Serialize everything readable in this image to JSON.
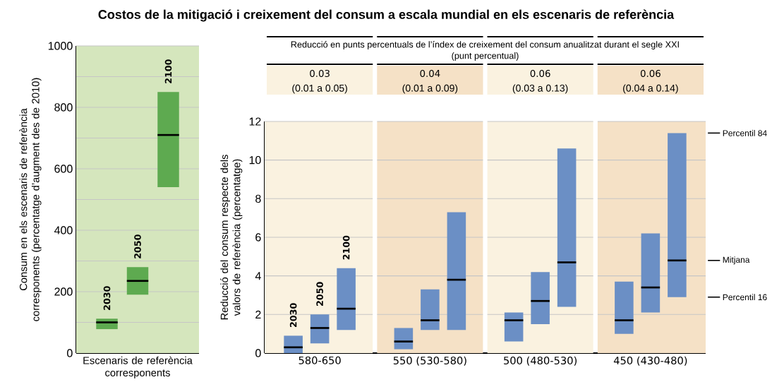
{
  "chart_data": [
    {
      "type": "box",
      "title": "Costos de la mitigació i creixement del consum a escala mundial en els escenaris de referència",
      "categories": [
        "2030",
        "2050",
        "2100"
      ],
      "color": "#5eaa50",
      "boxes": [
        {
          "low": 78,
          "q1": 78,
          "median": 100,
          "q3": 112,
          "high": 112
        },
        {
          "low": 190,
          "q1": 190,
          "median": 235,
          "q3": 280,
          "high": 280
        },
        {
          "low": 540,
          "q1": 540,
          "median": 710,
          "q3": 850,
          "high": 850
        }
      ],
      "ylabel": "Consum en els escenaris de referència corresponents (percentatge d’augment des de 2010)",
      "xlabel": "Escenaris de referència corresponents",
      "ylim": [
        0,
        1000
      ],
      "yticks": [
        0,
        {
          "value": 100,
          "label": null
        },
        200,
        {
          "value": 300,
          "label": null
        },
        400,
        {
          "value": 500,
          "label": null
        },
        600,
        {
          "value": 700,
          "label": null
        },
        800,
        {
          "value": 900,
          "label": null
        },
        1000
      ],
      "grid": "y"
    },
    {
      "type": "box",
      "categories": [
        "580-650",
        "550 (530-580)",
        "500 (480-530)",
        "450 (430-480)"
      ],
      "series": [
        {
          "name": "2030",
          "color": "#6b8fc5",
          "boxes": [
            {
              "low": 0,
              "q1": 0,
              "median": 0.3,
              "q3": 0.9,
              "high": 0.9
            },
            {
              "low": 0.2,
              "q1": 0.2,
              "median": 0.6,
              "q3": 1.3,
              "high": 1.3
            },
            {
              "low": 0.6,
              "q1": 0.6,
              "median": 1.7,
              "q3": 2.1,
              "high": 2.1
            },
            {
              "low": 1.0,
              "q1": 1.0,
              "median": 1.7,
              "q3": 3.7,
              "high": 3.7
            }
          ]
        },
        {
          "name": "2050",
          "color": "#6b8fc5",
          "boxes": [
            {
              "low": 0.5,
              "q1": 0.5,
              "median": 1.3,
              "q3": 2.0,
              "high": 2.0
            },
            {
              "low": 1.2,
              "q1": 1.2,
              "median": 1.7,
              "q3": 3.3,
              "high": 3.3
            },
            {
              "low": 1.5,
              "q1": 1.5,
              "median": 2.7,
              "q3": 4.2,
              "high": 4.2
            },
            {
              "low": 2.1,
              "q1": 2.1,
              "median": 3.4,
              "q3": 6.2,
              "high": 6.2
            }
          ]
        },
        {
          "name": "2100",
          "color": "#6b8fc5",
          "boxes": [
            {
              "low": 1.2,
              "q1": 1.2,
              "median": 2.3,
              "q3": 4.4,
              "high": 4.4
            },
            {
              "low": 1.2,
              "q1": 1.2,
              "median": 3.8,
              "q3": 7.3,
              "high": 7.3
            },
            {
              "low": 2.4,
              "q1": 2.4,
              "median": 4.7,
              "q3": 10.6,
              "high": 10.6
            },
            {
              "low": 2.9,
              "q1": 2.9,
              "median": 4.8,
              "q3": 11.4,
              "high": 11.4
            }
          ]
        }
      ],
      "ylabel": "Reducció del consum respecte dels valors de referència (percentatge)",
      "ylim": [
        0,
        12
      ],
      "yticks": [
        0,
        2,
        4,
        6,
        8,
        10,
        12
      ],
      "grid": "y",
      "bands": [
        {
          "axis": "x",
          "from": "580-650",
          "to": "580-650",
          "color": "#faf2e0"
        },
        {
          "axis": "x",
          "from": "550 (530-580)",
          "to": "550 (530-580)",
          "color": "#f5e1c6"
        },
        {
          "axis": "x",
          "from": "500 (480-530)",
          "to": "500 (480-530)",
          "color": "#faf2e0"
        },
        {
          "axis": "x",
          "from": "450 (430-480)",
          "to": "450 (430-480)",
          "color": "#f5e1c6"
        }
      ],
      "annotations": [
        "Reducció en punts percentuals de l’índex de creixement del consum anualitzat durant el segle XXI",
        "(punt percentual)",
        "0.03",
        "(0.01 a 0.05)",
        "0.04",
        "(0.01 a 0.09)",
        "0.06",
        "(0.03 a 0.13)",
        "0.06",
        "(0.04 a 0.14)",
        "Percentil 84",
        "Mitjana",
        "Percentil 16"
      ]
    }
  ]
}
